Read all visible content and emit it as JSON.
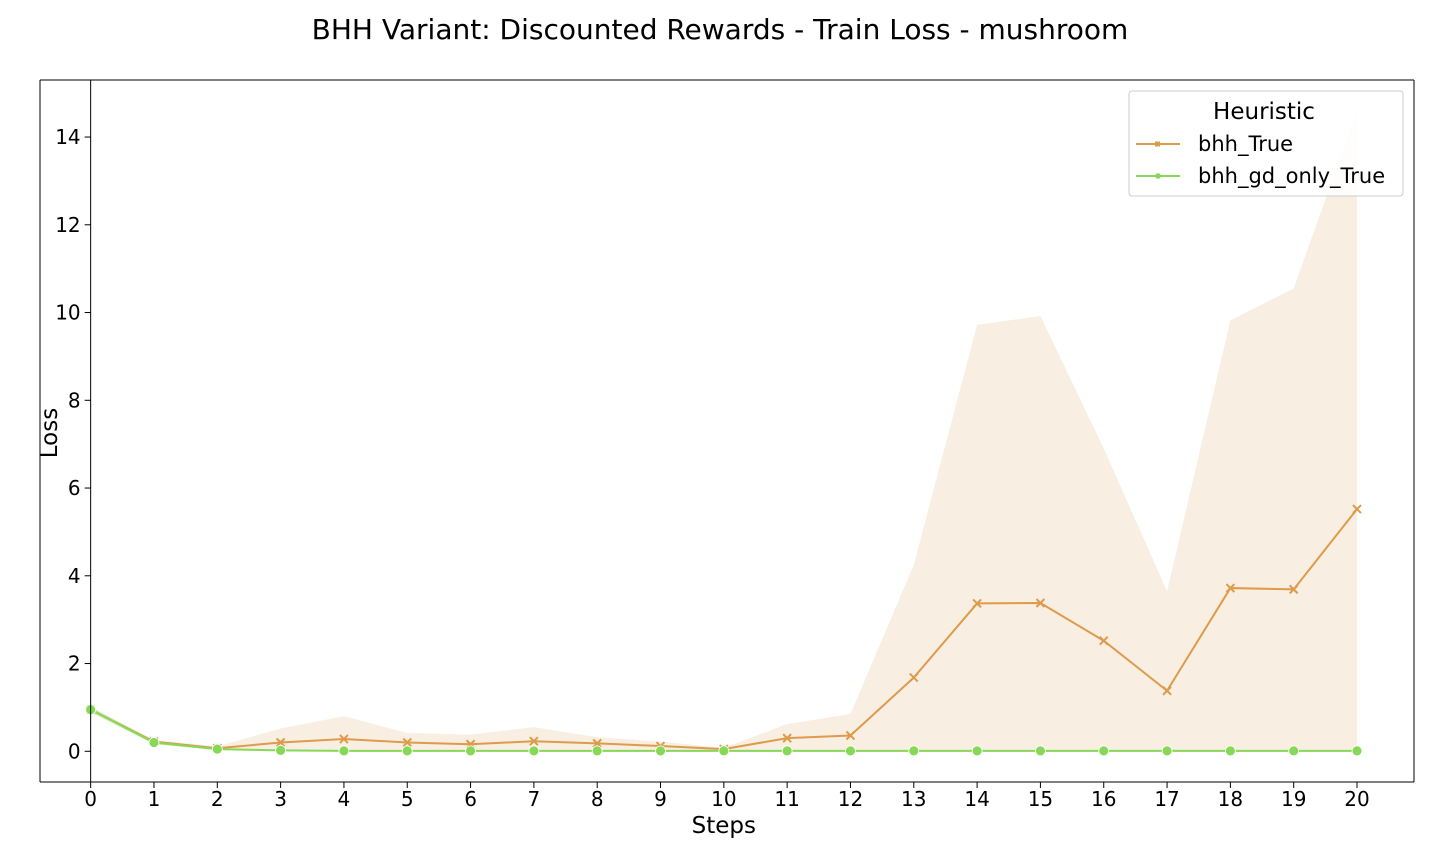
{
  "chart_data": {
    "type": "line",
    "title": "BHH Variant: Discounted Rewards - Train Loss - mushroom",
    "xlabel": "Steps",
    "ylabel": "Loss",
    "x": [
      0,
      1,
      2,
      3,
      4,
      5,
      6,
      7,
      8,
      9,
      10,
      11,
      12,
      13,
      14,
      15,
      16,
      17,
      18,
      19,
      20
    ],
    "xticks": [
      "0",
      "1",
      "2",
      "3",
      "4",
      "5",
      "6",
      "7",
      "8",
      "9",
      "10",
      "11",
      "12",
      "13",
      "14",
      "15",
      "16",
      "17",
      "18",
      "19",
      "20"
    ],
    "yticks": [
      "0",
      "2",
      "4",
      "6",
      "8",
      "10",
      "12",
      "14"
    ],
    "xlim": [
      -0.8,
      20.9
    ],
    "ylim": [
      -0.7,
      15.3
    ],
    "grid": false,
    "legend": {
      "title": "Heuristic",
      "position": "top-right"
    },
    "series": [
      {
        "name": "bhh_True",
        "color": "#dd9b4b",
        "band_color": "#f7ebdc",
        "marker": "x",
        "values": [
          0.95,
          0.22,
          0.07,
          0.2,
          0.28,
          0.2,
          0.16,
          0.23,
          0.18,
          0.12,
          0.05,
          0.3,
          0.36,
          1.68,
          3.37,
          3.38,
          2.52,
          1.38,
          3.72,
          3.69,
          5.52
        ],
        "band_lower": [
          0.88,
          0.18,
          0.04,
          0.0,
          0.0,
          0.0,
          0.0,
          0.0,
          0.0,
          0.0,
          0.0,
          0.0,
          0.0,
          0.0,
          0.0,
          0.0,
          0.0,
          0.0,
          0.0,
          0.0,
          0.0
        ],
        "band_upper": [
          1.02,
          0.26,
          0.11,
          0.52,
          0.8,
          0.42,
          0.38,
          0.55,
          0.32,
          0.22,
          0.08,
          0.62,
          0.85,
          4.25,
          9.72,
          9.92,
          6.9,
          3.65,
          9.82,
          10.55,
          14.6
        ]
      },
      {
        "name": "bhh_gd_only_True",
        "color": "#88d858",
        "band_color": "#b5e69a",
        "marker": "o",
        "values": [
          0.95,
          0.2,
          0.05,
          0.02,
          0.01,
          0.01,
          0.01,
          0.01,
          0.01,
          0.01,
          0.01,
          0.01,
          0.01,
          0.01,
          0.01,
          0.01,
          0.01,
          0.01,
          0.01,
          0.01,
          0.01
        ],
        "band_lower": [
          0.9,
          0.16,
          0.03,
          0.01,
          0.0,
          0.0,
          0.0,
          0.0,
          0.0,
          0.0,
          0.0,
          0.0,
          0.0,
          0.0,
          0.0,
          0.0,
          0.0,
          0.0,
          0.0,
          0.0,
          0.0
        ],
        "band_upper": [
          1.0,
          0.24,
          0.07,
          0.03,
          0.02,
          0.02,
          0.02,
          0.02,
          0.02,
          0.02,
          0.02,
          0.02,
          0.02,
          0.02,
          0.02,
          0.02,
          0.02,
          0.02,
          0.02,
          0.02,
          0.02
        ]
      }
    ]
  }
}
